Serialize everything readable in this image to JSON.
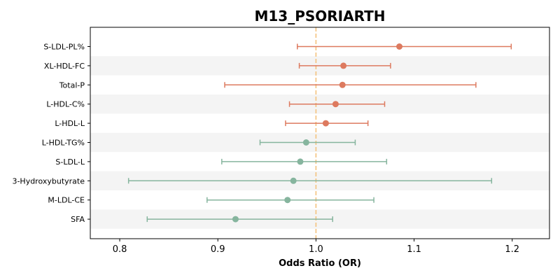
{
  "chart_data": {
    "type": "forest",
    "title": "M13_PSORIARTH",
    "xlabel": "Odds Ratio (OR)",
    "xlim": [
      0.77,
      1.238
    ],
    "xticks": [
      0.8,
      0.9,
      1.0,
      1.1,
      1.2
    ],
    "xtick_labels": [
      "0.8",
      "0.9",
      "1.0",
      "1.1",
      "1.2"
    ],
    "reference_line": 1.0,
    "colors": {
      "positive": "#dd7a5f",
      "negative": "#86b59e",
      "reference": "#f5c27d",
      "band": "#f4f4f4"
    },
    "rows": [
      {
        "label": "S-LDL-PL%",
        "or": 1.085,
        "lower": 0.981,
        "upper": 1.199
      },
      {
        "label": "XL-HDL-FC",
        "or": 1.028,
        "lower": 0.983,
        "upper": 1.076
      },
      {
        "label": "Total-P",
        "or": 1.027,
        "lower": 0.907,
        "upper": 1.163
      },
      {
        "label": "L-HDL-C%",
        "or": 1.02,
        "lower": 0.973,
        "upper": 1.07
      },
      {
        "label": "L-HDL-L",
        "or": 1.01,
        "lower": 0.969,
        "upper": 1.053
      },
      {
        "label": "L-HDL-TG%",
        "or": 0.99,
        "lower": 0.943,
        "upper": 1.04
      },
      {
        "label": "S-LDL-L",
        "or": 0.984,
        "lower": 0.904,
        "upper": 1.072
      },
      {
        "label": "3-Hydroxybutyrate",
        "or": 0.977,
        "lower": 0.809,
        "upper": 1.179
      },
      {
        "label": "M-LDL-CE",
        "or": 0.971,
        "lower": 0.889,
        "upper": 1.059
      },
      {
        "label": "SFA",
        "or": 0.918,
        "lower": 0.828,
        "upper": 1.017
      }
    ]
  }
}
